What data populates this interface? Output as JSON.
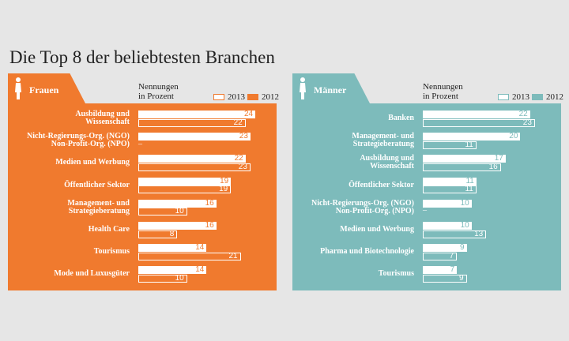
{
  "title": "Die Top 8 der beliebtesten Branchen",
  "chart_data": [
    {
      "type": "bar",
      "orientation": "horizontal",
      "panel": "Frauen",
      "color": "#f07a2e",
      "unit_label": [
        "Nennungen",
        "in Prozent"
      ],
      "legend": [
        "2013",
        "2012"
      ],
      "categories": [
        [
          "Ausbildung und",
          "Wissenschaft"
        ],
        [
          "Nicht-Regierungs-Org. (NGO)",
          "Non-Profit-Org. (NPO)"
        ],
        [
          "Medien und Werbung"
        ],
        [
          "Öffentlicher Sektor"
        ],
        [
          "Management- und",
          "Strategieberatung"
        ],
        [
          "Health Care"
        ],
        [
          "Tourismus"
        ],
        [
          "Mode und Luxusgüter"
        ]
      ],
      "series": [
        {
          "name": "2013",
          "values": [
            24,
            23,
            22,
            19,
            16,
            16,
            14,
            14
          ]
        },
        {
          "name": "2012",
          "values": [
            22,
            null,
            23,
            19,
            10,
            8,
            21,
            10
          ]
        }
      ],
      "missing_label": "–"
    },
    {
      "type": "bar",
      "orientation": "horizontal",
      "panel": "Männer",
      "color": "#7dbbbb",
      "unit_label": [
        "Nennungen",
        "in Prozent"
      ],
      "legend": [
        "2013",
        "2012"
      ],
      "categories": [
        [
          "Banken"
        ],
        [
          "Management- und",
          "Strategieberatung"
        ],
        [
          "Ausbildung und",
          "Wissenschaft"
        ],
        [
          "Öffentlicher Sektor"
        ],
        [
          "Nicht-Regierungs-Org. (NGO)",
          "Non-Profit-Org. (NPO)"
        ],
        [
          "Medien und Werbung"
        ],
        [
          "Pharma und Biotechnologie"
        ],
        [
          "Tourismus"
        ]
      ],
      "series": [
        {
          "name": "2013",
          "values": [
            22,
            20,
            17,
            11,
            10,
            10,
            9,
            7
          ]
        },
        {
          "name": "2012",
          "values": [
            23,
            11,
            16,
            11,
            null,
            13,
            7,
            9
          ]
        }
      ],
      "missing_label": "–"
    }
  ]
}
